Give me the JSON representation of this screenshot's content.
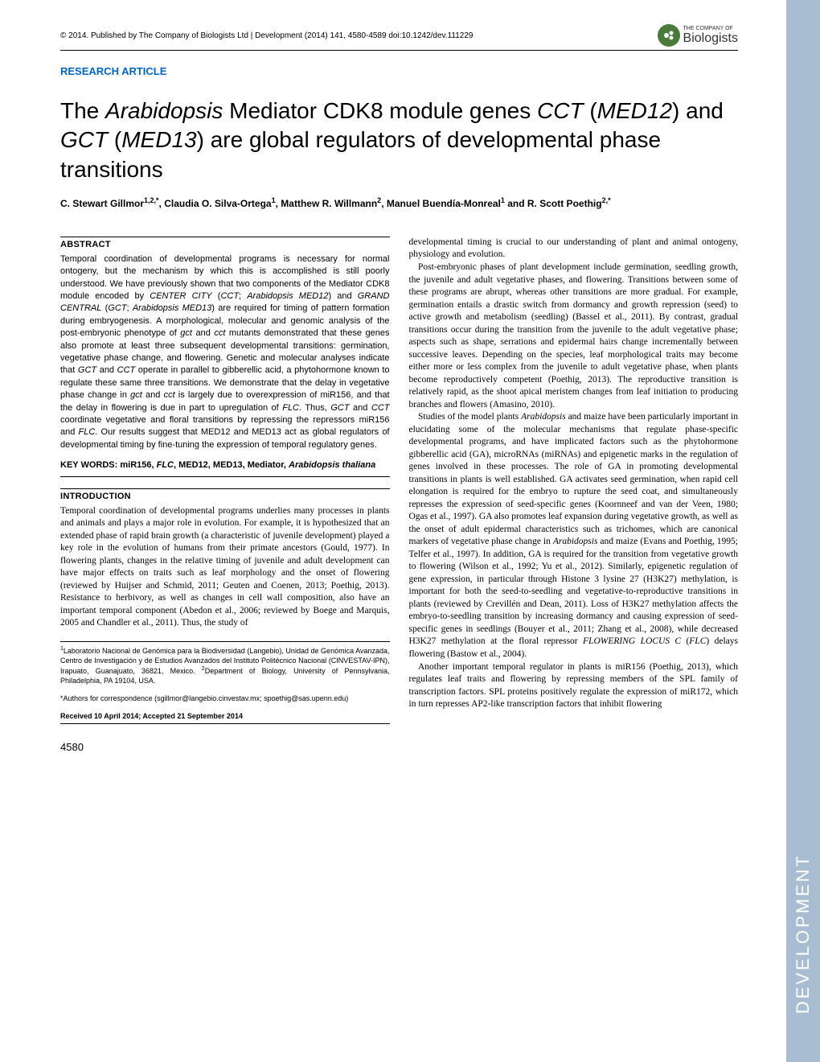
{
  "header": {
    "meta": "© 2014. Published by The Company of Biologists Ltd | Development (2014) 141, 4580-4589 doi:10.1242/dev.111229",
    "logo_top": "THE COMPANY OF",
    "logo_main": "Biologists"
  },
  "article_type": "RESEARCH ARTICLE",
  "title_html": "The <em>Arabidopsis</em> Mediator CDK8 module genes <em>CCT</em> (<em>MED12</em>) and <em>GCT</em> (<em>MED13</em>) are global regulators of developmental phase transitions",
  "authors_html": "C. Stewart Gillmor<sup>1,2,*</sup>, Claudia O. Silva-Ortega<sup>1</sup>, Matthew R. Willmann<sup>2</sup>, Manuel Buendía-Monreal<sup>1</sup> and R. Scott Poethig<sup>2,*</sup>",
  "abstract_heading": "ABSTRACT",
  "abstract_html": "Temporal coordination of developmental programs is necessary for normal ontogeny, but the mechanism by which this is accomplished is still poorly understood. We have previously shown that two components of the Mediator CDK8 module encoded by <em>CENTER CITY</em> (<em>CCT</em>; <em>Arabidopsis MED12</em>) and <em>GRAND CENTRAL</em> (<em>GCT</em>; <em>Arabidopsis MED13</em>) are required for timing of pattern formation during embryogenesis. A morphological, molecular and genomic analysis of the post-embryonic phenotype of <em>gct</em> and <em>cct</em> mutants demonstrated that these genes also promote at least three subsequent developmental transitions: germination, vegetative phase change, and flowering. Genetic and molecular analyses indicate that <em>GCT</em> and <em>CCT</em> operate in parallel to gibberellic acid, a phytohormone known to regulate these same three transitions. We demonstrate that the delay in vegetative phase change in <em>gct</em> and <em>cct</em> is largely due to overexpression of miR156, and that the delay in flowering is due in part to upregulation of <em>FLC</em>. Thus, <em>GCT</em> and <em>CCT</em> coordinate vegetative and floral transitions by repressing the repressors miR156 and <em>FLC</em>. Our results suggest that MED12 and MED13 act as global regulators of developmental timing by fine-tuning the expression of temporal regulatory genes.",
  "keywords_html": "KEY WORDS: miR156, <em>FLC</em>, MED12, MED13, Mediator, <em>Arabidopsis thaliana</em>",
  "intro_heading": "INTRODUCTION",
  "intro_left_html": "Temporal coordination of developmental programs underlies many processes in plants and animals and plays a major role in evolution. For example, it is hypothesized that an extended phase of rapid brain growth (a characteristic of juvenile development) played a key role in the evolution of humans from their primate ancestors (Gould, 1977). In flowering plants, changes in the relative timing of juvenile and adult development can have major effects on traits such as leaf morphology and the onset of flowering (reviewed by Huijser and Schmid, 2011; Geuten and Coenen, 2013; Poethig, 2013). Resistance to herbivory, as well as changes in cell wall composition, also have an important temporal component (Abedon et al., 2006; reviewed by Boege and Marquis, 2005 and Chandler et al., 2011). Thus, the study of",
  "col_right_p1_html": "developmental timing is crucial to our understanding of plant and animal ontogeny, physiology and evolution.",
  "col_right_p2_html": "Post-embryonic phases of plant development include germination, seedling growth, the juvenile and adult vegetative phases, and flowering. Transitions between some of these programs are abrupt, whereas other transitions are more gradual. For example, germination entails a drastic switch from dormancy and growth repression (seed) to active growth and metabolism (seedling) (Bassel et al., 2011). By contrast, gradual transitions occur during the transition from the juvenile to the adult vegetative phase; aspects such as shape, serrations and epidermal hairs change incrementally between successive leaves. Depending on the species, leaf morphological traits may become either more or less complex from the juvenile to adult vegetative phase, when plants become reproductively competent (Poethig, 2013). The reproductive transition is relatively rapid, as the shoot apical meristem changes from leaf initiation to producing branches and flowers (Amasino, 2010).",
  "col_right_p3_html": "Studies of the model plants <em>Arabidopsis</em> and maize have been particularly important in elucidating some of the molecular mechanisms that regulate phase-specific developmental programs, and have implicated factors such as the phytohormone gibberellic acid (GA), microRNAs (miRNAs) and epigenetic marks in the regulation of genes involved in these processes. The role of GA in promoting developmental transitions in plants is well established. GA activates seed germination, when rapid cell elongation is required for the embryo to rupture the seed coat, and simultaneously represses the expression of seed-specific genes (Koornneef and van der Veen, 1980; Ogas et al., 1997). GA also promotes leaf expansion during vegetative growth, as well as the onset of adult epidermal characteristics such as trichomes, which are canonical markers of vegetative phase change in <em>Arabidopsis</em> and maize (Evans and Poethig, 1995; Telfer et al., 1997). In addition, GA is required for the transition from vegetative growth to flowering (Wilson et al., 1992; Yu et al., 2012). Similarly, epigenetic regulation of gene expression, in particular through Histone 3 lysine 27 (H3K27) methylation, is important for both the seed-to-seedling and vegetative-to-reproductive transitions in plants (reviewed by Crevillén and Dean, 2011). Loss of H3K27 methylation affects the embryo-to-seedling transition by increasing dormancy and causing expression of seed-specific genes in seedlings (Bouyer et al., 2011; Zhang et al., 2008), while decreased H3K27 methylation at the floral repressor <em>FLOWERING LOCUS C</em> (<em>FLC</em>) delays flowering (Bastow et al., 2004).",
  "col_right_p4_html": "Another important temporal regulator in plants is miR156 (Poethig, 2013), which regulates leaf traits and flowering by repressing members of the SPL family of transcription factors. SPL proteins positively regulate the expression of miR172, which in turn represses AP2-like transcription factors that inhibit flowering",
  "affiliations_html": "<sup>1</sup>Laboratorio Nacional de Genómica para la Biodiversidad (Langebio), Unidad de Genómica Avanzada, Centro de Investigación y de Estudios Avanzados del Instituto Politécnico Nacional (CINVESTAV-IPN), Irapuato, Guanajuato, 36821, Mexico. <sup>2</sup>Department of Biology, University of Pennsylvania, Philadelphia, PA 19104, USA.",
  "correspondence": "*Authors for correspondence (sgillmor@langebio.cinvestav.mx; spoethig@sas.upenn.edu)",
  "received": "Received 10 April 2014; Accepted 21 September 2014",
  "page_number": "4580",
  "sidebar_text": "DEVELOPMENT"
}
